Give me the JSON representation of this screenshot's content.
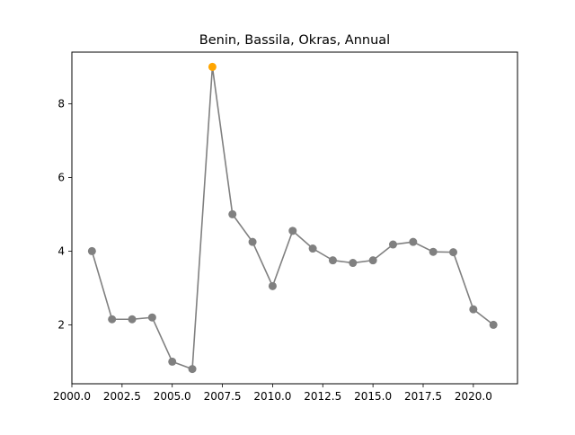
{
  "chart_data": {
    "type": "line",
    "title": "Benin, Bassila, Okras, Annual",
    "xlabel": "",
    "ylabel": "",
    "xlim": [
      2000.0,
      2022.2
    ],
    "ylim": [
      0.4,
      9.4
    ],
    "xticks": [
      2000.0,
      2002.5,
      2005.0,
      2007.5,
      2010.0,
      2012.5,
      2015.0,
      2017.5,
      2020.0
    ],
    "xtick_labels": [
      "2000.0",
      "2002.5",
      "2005.0",
      "2007.5",
      "2010.0",
      "2012.5",
      "2015.0",
      "2017.5",
      "2020.0"
    ],
    "yticks": [
      2,
      4,
      6,
      8
    ],
    "ytick_labels": [
      "2",
      "4",
      "6",
      "8"
    ],
    "grid": false,
    "legend": "none",
    "series": [
      {
        "x": [
          2001,
          2002,
          2003,
          2004,
          2005,
          2006,
          2007,
          2008,
          2009,
          2010,
          2011,
          2012,
          2013,
          2014,
          2015,
          2016,
          2017,
          2018,
          2019,
          2020,
          2021
        ],
        "values": [
          4.0,
          2.15,
          2.15,
          2.2,
          1.0,
          0.8,
          9.0,
          5.0,
          4.25,
          3.05,
          4.55,
          4.07,
          3.75,
          3.68,
          3.75,
          4.18,
          4.25,
          3.98,
          3.97,
          2.42,
          2.0
        ],
        "line_color": "#808080",
        "marker_color": "#808080"
      }
    ],
    "highlight": {
      "x": 2007,
      "value": 9.0,
      "color": "#ffa500"
    }
  }
}
